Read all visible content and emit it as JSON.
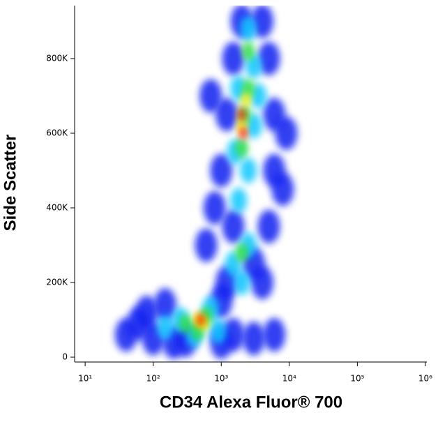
{
  "chart_data": {
    "type": "scatter",
    "x_label": "CD34 Alexa Fluor® 700",
    "y_label": "Side Scatter",
    "xscale": "log",
    "xlim": [
      7,
      1050000
    ],
    "ylim": [
      -13000,
      942000
    ],
    "xticks": [
      {
        "value": 10,
        "label": "10¹"
      },
      {
        "value": 100,
        "label": "10²"
      },
      {
        "value": 1000,
        "label": "10³"
      },
      {
        "value": 10000,
        "label": "10⁴"
      },
      {
        "value": 100000,
        "label": "10⁵"
      },
      {
        "value": 1000000,
        "label": "10⁶"
      }
    ],
    "yticks": [
      0,
      {
        "value": 200000,
        "label": "200K"
      },
      {
        "value": 400000,
        "label": "400K"
      },
      {
        "value": 600000,
        "label": "600K"
      },
      {
        "value": 800000,
        "label": "800K"
      }
    ],
    "series": [
      {
        "color": "#1020f0",
        "x": [
          40,
          80,
          150,
          100,
          200,
          300,
          1000,
          1500,
          3000,
          6000,
          60,
          1000,
          1200,
          4000,
          1500,
          5000,
          1000,
          6000,
          1200,
          6000,
          1500,
          5000,
          2000,
          4000,
          800,
          8000,
          700,
          9000,
          3000,
          600
        ],
        "y": [
          60000,
          120000,
          140000,
          50000,
          40000,
          45000,
          40000,
          60000,
          50000,
          60000,
          90000,
          150000,
          200000,
          200000,
          350000,
          350000,
          500000,
          500000,
          650000,
          650000,
          800000,
          800000,
          900000,
          900000,
          400000,
          450000,
          700000,
          600000,
          250000,
          300000
        ]
      },
      {
        "color": "#10c8ff",
        "x": [
          150,
          250,
          900,
          700,
          400,
          1500,
          2500,
          1800,
          2500,
          1600,
          3000,
          1800,
          3000,
          2500,
          2000,
          3500
        ],
        "y": [
          80000,
          100000,
          70000,
          130000,
          60000,
          250000,
          300000,
          420000,
          500000,
          550000,
          620000,
          720000,
          780000,
          880000,
          200000,
          700000
        ]
      },
      {
        "color": "#30e040",
        "x": [
          300,
          600,
          450,
          2000,
          2000,
          2500,
          2500,
          2200
        ],
        "y": [
          90000,
          110000,
          70000,
          280000,
          560000,
          720000,
          820000,
          650000
        ]
      },
      {
        "color": "#f0f000",
        "x": [
          450,
          550,
          2000,
          2300
        ],
        "y": [
          100000,
          90000,
          620000,
          690000
        ]
      },
      {
        "color": "#ff2000",
        "x": [
          500,
          2000,
          2100
        ],
        "y": [
          100000,
          650000,
          600000
        ]
      }
    ]
  }
}
